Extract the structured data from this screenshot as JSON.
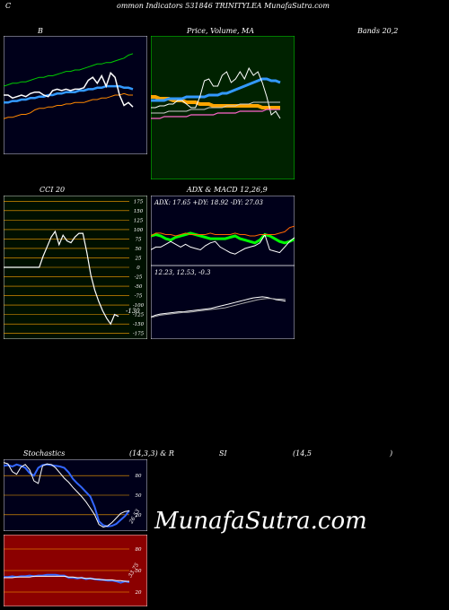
{
  "header": {
    "c": "C",
    "text": "ommon  Indicators 531846  TRINITYLEA MunafaSutra.com"
  },
  "titles": {
    "b": "B",
    "price": "Price,  Volume,  MA",
    "bands": "Bands 20,2",
    "cci": "CCI 20",
    "adx": "ADX  & MACD 12,26,9",
    "stoch": "Stochastics",
    "stoch_params": "(14,3,3) & R",
    "si": "SI",
    "rsi_params": "(14,5",
    "close_paren": ")"
  },
  "adx_text": "ADX: 17.65  +DY: 18.92  -DY: 27.03",
  "macd_text": "12.23,  12.53,  -0.3",
  "cci_last": "-130",
  "stoch_last": "26.53",
  "rsi_last": "33.75",
  "watermark": "MunafaSutra.com",
  "colors": {
    "bollinger_bg": "#00001a",
    "price_bg": "#002200",
    "cci_bg": "#001000",
    "adx_bg": "#00001a",
    "stoch_bg": "#00001a",
    "rsi_bg": "#8b0000"
  },
  "chart_data": [
    {
      "type": "line",
      "panel": "bollinger",
      "series": [
        {
          "color": "#00cc00",
          "values": [
            46,
            47,
            48,
            48,
            49,
            49,
            50,
            51,
            52,
            52,
            53,
            53,
            54,
            55,
            56,
            56,
            57,
            57,
            58,
            59,
            60,
            61,
            61,
            62,
            62,
            63,
            64,
            65,
            67,
            68
          ]
        },
        {
          "color": "#3399ff",
          "values": [
            35,
            35,
            36,
            36,
            37,
            37,
            38,
            38,
            39,
            39,
            40,
            40,
            41,
            41,
            42,
            42,
            42,
            43,
            43,
            44,
            44,
            45,
            45,
            46,
            46,
            46,
            46,
            45,
            45,
            44
          ]
        },
        {
          "color": "#ff8800",
          "values": [
            24,
            25,
            25,
            26,
            27,
            27,
            28,
            30,
            31,
            31,
            32,
            32,
            33,
            33,
            34,
            34,
            35,
            35,
            35,
            36,
            37,
            37,
            38,
            38,
            39,
            40,
            40,
            41,
            40,
            40
          ]
        },
        {
          "color": "#ffffff",
          "values": [
            40,
            40,
            38,
            39,
            40,
            39,
            41,
            42,
            42,
            40,
            39,
            43,
            44,
            43,
            44,
            43,
            44,
            44,
            45,
            50,
            52,
            48,
            53,
            46,
            55,
            52,
            40,
            33,
            35,
            32
          ]
        }
      ]
    },
    {
      "type": "line",
      "panel": "price",
      "series": [
        {
          "color": "#ffa500",
          "values": [
            46,
            46,
            45,
            45,
            45,
            44,
            44,
            44,
            43,
            43,
            43,
            42,
            42,
            42,
            41,
            41,
            41,
            41,
            41,
            41,
            41,
            41,
            41,
            41,
            41,
            40,
            40,
            40,
            40,
            40
          ]
        },
        {
          "color": "#3399ff",
          "values": [
            44,
            44,
            44,
            44,
            45,
            45,
            45,
            45,
            46,
            46,
            46,
            46,
            46,
            47,
            47,
            47,
            48,
            48,
            49,
            50,
            51,
            52,
            53,
            54,
            55,
            56,
            56,
            55,
            55,
            54
          ]
        },
        {
          "color": "#ffffff",
          "values": [
            40,
            40,
            41,
            41,
            42,
            42,
            44,
            44,
            42,
            40,
            40,
            46,
            55,
            56,
            52,
            52,
            58,
            60,
            54,
            56,
            60,
            56,
            62,
            58,
            60,
            54,
            46,
            36,
            38,
            34
          ]
        },
        {
          "color": "#ff66cc",
          "values": [
            34,
            34,
            34,
            35,
            35,
            35,
            35,
            35,
            35,
            36,
            36,
            36,
            36,
            36,
            36,
            37,
            37,
            37,
            37,
            37,
            38,
            38,
            38,
            38,
            38,
            38,
            39,
            39,
            39,
            39
          ]
        },
        {
          "color": "#cccccc",
          "values": [
            37,
            37,
            37,
            37,
            38,
            38,
            38,
            38,
            38,
            39,
            39,
            39,
            39,
            40,
            40,
            40,
            40,
            41,
            41,
            41,
            42,
            42,
            42,
            43,
            43,
            43,
            43,
            43,
            43,
            43
          ]
        }
      ]
    },
    {
      "type": "line",
      "panel": "cci",
      "levels": [
        175,
        150,
        125,
        100,
        75,
        50,
        25,
        0,
        -25,
        -50,
        -75,
        -100,
        -125,
        -150,
        -175
      ],
      "ylim": [
        -175,
        175
      ],
      "values": [
        0,
        0,
        0,
        0,
        0,
        0,
        0,
        0,
        0,
        0,
        30,
        55,
        80,
        95,
        60,
        85,
        70,
        65,
        80,
        90,
        90,
        40,
        -20,
        -60,
        -90,
        -115,
        -135,
        -150,
        -125,
        -130
      ]
    },
    {
      "type": "line",
      "panel": "adx",
      "series": [
        {
          "name": "ADX",
          "color": "#00ff00",
          "values": [
            20,
            21,
            20,
            18,
            17,
            19,
            20,
            21,
            22,
            21,
            20,
            19,
            18,
            18,
            18,
            18,
            19,
            20,
            18,
            17,
            16,
            15,
            17,
            21,
            20,
            18,
            16,
            15,
            16,
            17.65
          ]
        },
        {
          "name": "+DI",
          "color": "#ffffff",
          "values": [
            10,
            12,
            12,
            14,
            16,
            14,
            12,
            14,
            12,
            11,
            10,
            13,
            15,
            16,
            12,
            10,
            8,
            7,
            9,
            11,
            12,
            13,
            15,
            21,
            10,
            9,
            8,
            12,
            16,
            18.92
          ]
        },
        {
          "name": "-DI",
          "color": "#ff6600",
          "values": [
            20,
            22,
            22,
            21,
            21,
            20,
            21,
            22,
            21,
            21,
            21,
            21,
            22,
            21,
            21,
            21,
            21,
            22,
            21,
            21,
            20,
            20,
            21,
            21,
            21,
            21,
            22,
            23,
            26,
            27.03
          ]
        }
      ]
    },
    {
      "type": "line",
      "panel": "macd",
      "series": [
        {
          "name": "MACD",
          "color": "#ffffff",
          "values": [
            9.5,
            9.8,
            10.0,
            10.1,
            10.2,
            10.3,
            10.4,
            10.4,
            10.5,
            10.6,
            10.7,
            10.8,
            10.9,
            11.0,
            11.2,
            11.4,
            11.6,
            11.8,
            12.0,
            12.2,
            12.4,
            12.6,
            12.8,
            12.9,
            13.0,
            12.9,
            12.7,
            12.5,
            12.4,
            12.23
          ]
        },
        {
          "name": "Signal",
          "color": "#aaaaaa",
          "values": [
            9.4,
            9.6,
            9.8,
            9.9,
            10.0,
            10.1,
            10.2,
            10.3,
            10.3,
            10.4,
            10.5,
            10.6,
            10.7,
            10.8,
            10.9,
            11.0,
            11.1,
            11.3,
            11.5,
            11.7,
            11.9,
            12.1,
            12.3,
            12.5,
            12.6,
            12.7,
            12.7,
            12.6,
            12.6,
            12.53
          ]
        },
        {
          "name": "Hist",
          "color": "#00cc00",
          "values": [
            0.1,
            0.2,
            0.2,
            0.2,
            0.2,
            0.2,
            0.2,
            0.1,
            0.2,
            0.2,
            0.2,
            0.2,
            0.2,
            0.2,
            0.3,
            0.4,
            0.5,
            0.5,
            0.5,
            0.5,
            0.5,
            0.5,
            0.5,
            0.4,
            0.4,
            0.2,
            0.0,
            -0.1,
            -0.2,
            -0.3
          ]
        }
      ]
    },
    {
      "type": "line",
      "panel": "stochastics",
      "levels": [
        80,
        50,
        20
      ],
      "ylim": [
        0,
        100
      ],
      "series": [
        {
          "color": "#3366ff",
          "values": [
            95,
            96,
            94,
            97,
            95,
            92,
            84,
            80,
            92,
            96,
            97,
            96,
            95,
            94,
            92,
            85,
            75,
            68,
            62,
            55,
            48,
            32,
            10,
            4,
            2,
            3,
            6,
            12,
            18,
            26.53
          ]
        },
        {
          "color": "#ffffff",
          "values": [
            100,
            98,
            86,
            82,
            93,
            97,
            89,
            72,
            68,
            95,
            98,
            97,
            92,
            84,
            76,
            70,
            62,
            55,
            48,
            40,
            30,
            20,
            5,
            1,
            3,
            8,
            15,
            22,
            25,
            26
          ]
        }
      ]
    },
    {
      "type": "line",
      "panel": "rsi",
      "levels": [
        80,
        50,
        20
      ],
      "ylim": [
        0,
        100
      ],
      "series": [
        {
          "color": "#3366ff",
          "values": [
            41,
            41,
            42,
            41,
            42,
            42,
            43,
            42,
            43,
            43,
            44,
            44,
            44,
            43,
            43,
            40,
            40,
            39,
            40,
            38,
            39,
            38,
            37,
            37,
            36,
            36,
            35,
            33,
            35,
            33.75
          ]
        },
        {
          "color": "#ffffff",
          "values": [
            40,
            40,
            40,
            41,
            41,
            41,
            41,
            42,
            42,
            42,
            42,
            42,
            42,
            42,
            42,
            41,
            41,
            40,
            40,
            39,
            39,
            38,
            38,
            37,
            37,
            37,
            36,
            36,
            35,
            35
          ]
        }
      ]
    }
  ]
}
